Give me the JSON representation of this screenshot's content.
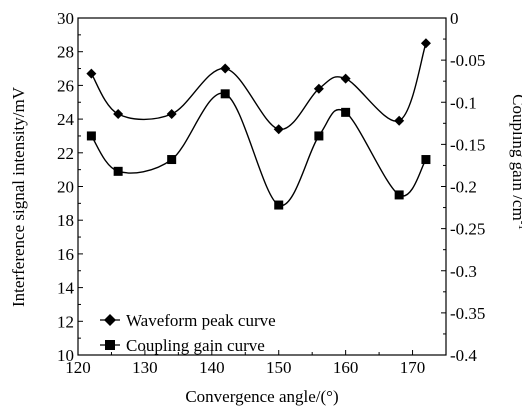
{
  "chart_data": {
    "type": "line",
    "xlabel": "Convergence angle/(°)",
    "ylabel_left": "Interference signal intensity/mV",
    "ylabel_right": "Coupling gain /cm",
    "ylabel_right_sup": "-1",
    "xlim": [
      120,
      175
    ],
    "ylim_left": [
      10,
      30
    ],
    "ylim_right": [
      -0.4,
      0
    ],
    "x_ticks": [
      120,
      130,
      140,
      150,
      160,
      170
    ],
    "x_tick_labels": [
      "120",
      "130",
      "140",
      "150",
      "160",
      "170"
    ],
    "y_left_ticks": [
      10,
      12,
      14,
      16,
      18,
      20,
      22,
      24,
      26,
      28,
      30
    ],
    "y_left_tick_labels": [
      "10",
      "12",
      "14",
      "16",
      "18",
      "20",
      "22",
      "24",
      "26",
      "28",
      "30"
    ],
    "y_right_ticks": [
      -0.4,
      -0.35,
      -0.3,
      -0.25,
      -0.2,
      -0.15,
      -0.1,
      -0.05,
      0
    ],
    "y_right_tick_labels": [
      "-0.4",
      "-0.35",
      "-0.3",
      "-0.25",
      "-0.2",
      "-0.15",
      "-0.1",
      "-0.05",
      "0"
    ],
    "grid": false,
    "legend_position": "bottom-left",
    "series": [
      {
        "name": "Waveform peak curve",
        "axis": "left",
        "marker": "diamond",
        "x": [
          122,
          126,
          134,
          142,
          150,
          156,
          160,
          168,
          172
        ],
        "y": [
          26.7,
          24.3,
          24.3,
          27.0,
          23.4,
          25.8,
          26.4,
          23.9,
          28.5
        ]
      },
      {
        "name": "Coupling gain curve",
        "axis": "left",
        "marker": "square",
        "x": [
          122,
          126,
          134,
          142,
          150,
          156,
          160,
          168,
          172
        ],
        "y": [
          23.0,
          20.9,
          21.6,
          25.5,
          18.9,
          23.0,
          24.4,
          19.5,
          21.6
        ]
      }
    ]
  }
}
